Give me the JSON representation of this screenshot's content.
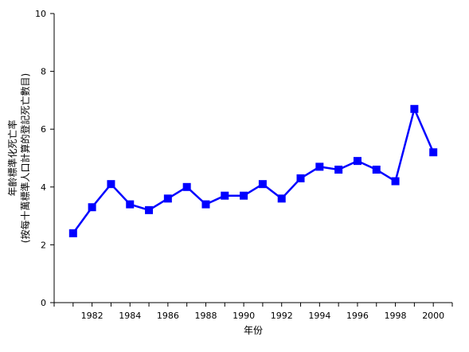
{
  "chart_data": {
    "type": "line",
    "title": "",
    "xlabel": "年份",
    "ylabel": [
      "年齡標準化死亡率",
      "(按每十萬標準人口計算的登記死亡數目)"
    ],
    "xlim": [
      1980,
      2001
    ],
    "ylim": [
      0,
      10
    ],
    "x_ticks": [
      1982,
      1984,
      1986,
      1988,
      1990,
      1992,
      1994,
      1996,
      1998,
      2000
    ],
    "y_ticks": [
      0,
      2,
      4,
      6,
      8,
      10
    ],
    "grid": false,
    "legend": "none",
    "series": [
      {
        "color": "#0000ff",
        "marker": "square",
        "x": [
          1981,
          1982,
          1983,
          1984,
          1985,
          1986,
          1987,
          1988,
          1989,
          1990,
          1991,
          1992,
          1993,
          1994,
          1995,
          1996,
          1997,
          1998,
          1999,
          2000
        ],
        "y": [
          2.4,
          3.3,
          4.1,
          3.4,
          3.2,
          3.6,
          4.0,
          3.4,
          3.7,
          3.7,
          4.1,
          3.6,
          4.3,
          4.7,
          4.6,
          4.9,
          4.6,
          4.2,
          6.7,
          5.2
        ]
      }
    ]
  }
}
